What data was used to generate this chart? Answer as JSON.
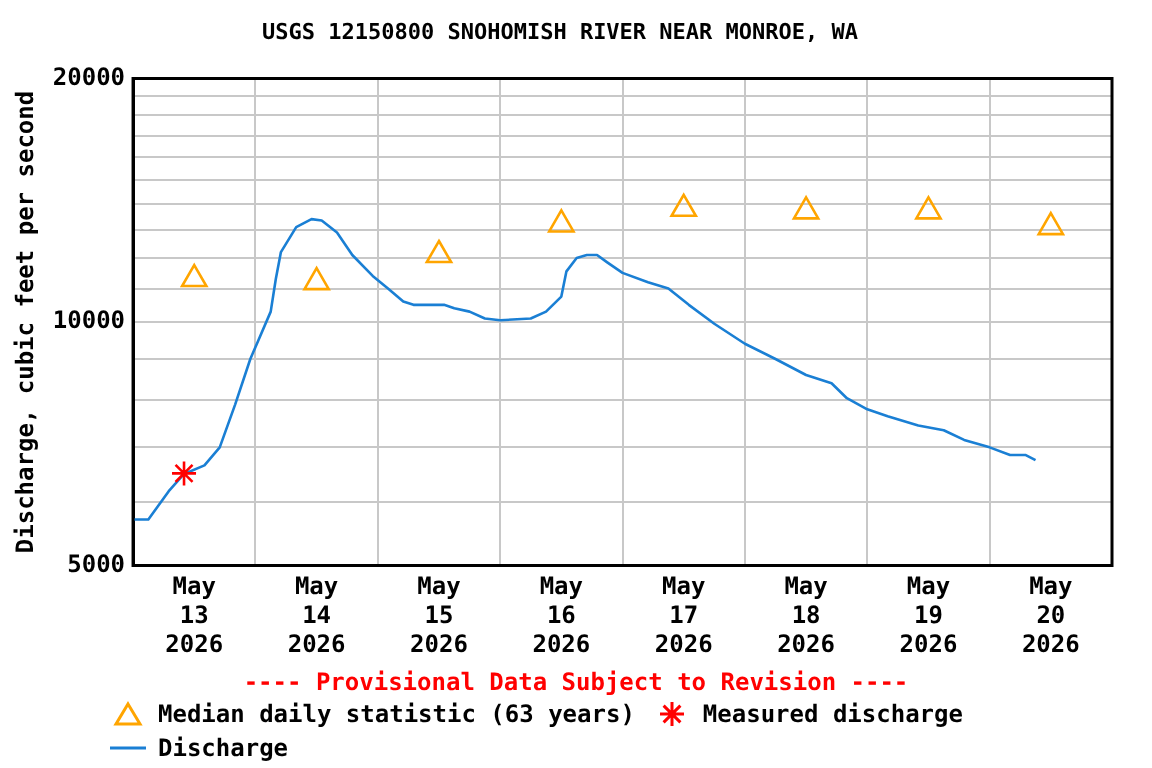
{
  "chart_data": {
    "type": "line",
    "title": "USGS 12150800 SNOHOMISH RIVER NEAR MONROE, WA",
    "ylabel": "Discharge, cubic feet per second",
    "annotations": [
      "---- Provisional Data Subject to Revision ----"
    ],
    "log": "y",
    "grid": true,
    "legend": "bottom",
    "xlim": [
      "2026-05-13T00:00",
      "2026-05-21T00:00"
    ],
    "xticks": [
      {
        "value": "2026-05-13T00:00",
        "label": null
      },
      {
        "value": "2026-05-13T12:00",
        "label": "May\n13\n2026"
      },
      {
        "value": "2026-05-14T00:00",
        "label": null
      },
      {
        "value": "2026-05-14T12:00",
        "label": "May\n14\n2026"
      },
      {
        "value": "2026-05-15T00:00",
        "label": null
      },
      {
        "value": "2026-05-15T12:00",
        "label": "May\n15\n2026"
      },
      {
        "value": "2026-05-16T00:00",
        "label": null
      },
      {
        "value": "2026-05-16T12:00",
        "label": "May\n16\n2026"
      },
      {
        "value": "2026-05-17T00:00",
        "label": null
      },
      {
        "value": "2026-05-17T12:00",
        "label": "May\n17\n2026"
      },
      {
        "value": "2026-05-18T00:00",
        "label": null
      },
      {
        "value": "2026-05-18T12:00",
        "label": "May\n18\n2026"
      },
      {
        "value": "2026-05-19T00:00",
        "label": null
      },
      {
        "value": "2026-05-19T12:00",
        "label": "May\n19\n2026"
      },
      {
        "value": "2026-05-20T00:00",
        "label": null
      },
      {
        "value": "2026-05-20T12:00",
        "label": "May\n20\n2026"
      },
      {
        "value": "2026-05-21T00:00",
        "label": null
      }
    ],
    "ylim": [
      5000,
      20000
    ],
    "yticks": [
      5000,
      {
        "value": 6000,
        "label": null
      },
      {
        "value": 7000,
        "label": null
      },
      {
        "value": 8000,
        "label": null
      },
      {
        "value": 9000,
        "label": null
      },
      10000,
      {
        "value": 11000,
        "label": null
      },
      {
        "value": 12000,
        "label": null
      },
      {
        "value": 13000,
        "label": null
      },
      {
        "value": 14000,
        "label": null
      },
      {
        "value": 15000,
        "label": null
      },
      {
        "value": 16000,
        "label": null
      },
      {
        "value": 17000,
        "label": null
      },
      {
        "value": 18000,
        "label": null
      },
      {
        "value": 19000,
        "label": null
      },
      20000
    ],
    "series": [
      {
        "name": "Median daily statistic (63 years)",
        "type": "scatter",
        "marker": "triangle",
        "color": "#ffa500",
        "x": [
          "2026-05-13T12:00",
          "2026-05-14T12:00",
          "2026-05-15T12:00",
          "2026-05-16T12:00",
          "2026-05-17T12:00",
          "2026-05-18T12:00",
          "2026-05-19T12:00",
          "2026-05-20T12:00"
        ],
        "values": [
          11300,
          11200,
          12100,
          13200,
          13800,
          13700,
          13700,
          13100
        ]
      },
      {
        "name": "Measured discharge",
        "type": "scatter",
        "marker": "cross",
        "color": "#ff0000",
        "x": [
          "2026-05-13T10:00"
        ],
        "values": [
          6500
        ]
      },
      {
        "name": "Discharge",
        "marker": "none",
        "line_style": "solid",
        "color": "#1a7fd4",
        "x": [
          "2026-05-13T00:00",
          "2026-05-13T03:00",
          "2026-05-13T07:00",
          "2026-05-13T10:00",
          "2026-05-13T14:00",
          "2026-05-13T17:00",
          "2026-05-13T20:00",
          "2026-05-13T23:00",
          "2026-05-14T03:00",
          "2026-05-14T04:00",
          "2026-05-14T05:00",
          "2026-05-14T08:00",
          "2026-05-14T11:00",
          "2026-05-14T13:00",
          "2026-05-14T16:00",
          "2026-05-14T19:00",
          "2026-05-14T23:00",
          "2026-05-15T02:00",
          "2026-05-15T05:00",
          "2026-05-15T07:00",
          "2026-05-15T13:00",
          "2026-05-15T15:00",
          "2026-05-15T18:00",
          "2026-05-15T21:00",
          "2026-05-16T00:00",
          "2026-05-16T06:00",
          "2026-05-16T09:00",
          "2026-05-16T12:00",
          "2026-05-16T13:00",
          "2026-05-16T15:00",
          "2026-05-16T17:00",
          "2026-05-16T19:00",
          "2026-05-16T21:00",
          "2026-05-17T00:00",
          "2026-05-17T05:00",
          "2026-05-17T09:00",
          "2026-05-17T13:00",
          "2026-05-17T18:00",
          "2026-05-18T00:00",
          "2026-05-18T06:00",
          "2026-05-18T12:00",
          "2026-05-18T17:00",
          "2026-05-18T20:00",
          "2026-05-19T00:00",
          "2026-05-19T04:00",
          "2026-05-19T10:00",
          "2026-05-19T15:00",
          "2026-05-19T19:00",
          "2026-05-20T00:00",
          "2026-05-20T04:00",
          "2026-05-20T07:00",
          "2026-05-20T09:00"
        ],
        "values": [
          5700,
          5700,
          6180,
          6490,
          6650,
          7000,
          7900,
          9000,
          10300,
          11300,
          12200,
          13100,
          13400,
          13350,
          12900,
          12100,
          11400,
          11000,
          10600,
          10500,
          10500,
          10400,
          10300,
          10100,
          10050,
          10100,
          10300,
          10750,
          11550,
          12000,
          12100,
          12100,
          11850,
          11500,
          11200,
          11000,
          10500,
          9950,
          9400,
          9000,
          8600,
          8400,
          8050,
          7800,
          7650,
          7450,
          7350,
          7150,
          7000,
          6850,
          6850,
          6750
        ]
      }
    ]
  }
}
